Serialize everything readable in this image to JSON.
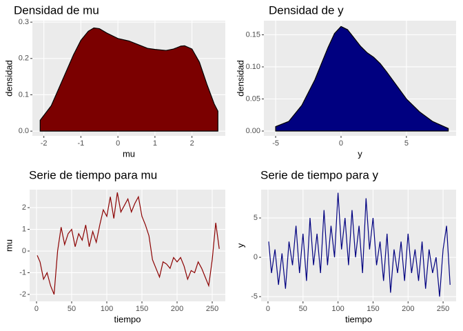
{
  "chart_data": [
    {
      "type": "area",
      "title": "Densidad de mu",
      "x_label": "mu",
      "y_label": "densidad",
      "color": "#7b0000",
      "x": [
        -2.1,
        -1.8,
        -1.5,
        -1.2,
        -1.0,
        -0.8,
        -0.65,
        -0.5,
        -0.3,
        0.0,
        0.3,
        0.5,
        0.8,
        1.0,
        1.3,
        1.5,
        1.7,
        1.8,
        2.0,
        2.2,
        2.4,
        2.6,
        2.7
      ],
      "values": [
        0.03,
        0.07,
        0.14,
        0.21,
        0.25,
        0.275,
        0.284,
        0.282,
        0.27,
        0.255,
        0.248,
        0.24,
        0.228,
        0.225,
        0.222,
        0.226,
        0.234,
        0.235,
        0.226,
        0.19,
        0.13,
        0.075,
        0.055
      ],
      "xlim": [
        -2.31,
        2.9
      ],
      "ylim": [
        -0.013,
        0.304
      ],
      "xticks": [
        -2,
        -1,
        0,
        1,
        2
      ],
      "yticks": [
        {
          "value": 0,
          "label": "0.0"
        },
        0.1,
        0.2,
        0.3
      ],
      "grid": true
    },
    {
      "type": "area",
      "title": "Densidad de y",
      "x_label": "y",
      "y_label": "densidad",
      "color": "#000080",
      "x": [
        -5,
        -4,
        -3,
        -2,
        -1.5,
        -1,
        -0.5,
        0,
        0.5,
        1,
        1.5,
        2,
        2.5,
        3,
        3.5,
        4,
        5,
        6,
        7,
        8.2
      ],
      "values": [
        0.007,
        0.015,
        0.04,
        0.08,
        0.105,
        0.13,
        0.152,
        0.163,
        0.158,
        0.145,
        0.132,
        0.122,
        0.115,
        0.105,
        0.092,
        0.078,
        0.05,
        0.03,
        0.015,
        0.004
      ],
      "xlim": [
        -5.9,
        8.8
      ],
      "ylim": [
        -0.0075,
        0.172
      ],
      "xticks": [
        -5,
        0,
        5
      ],
      "yticks": [
        {
          "value": 0,
          "label": "0.00"
        },
        0.05,
        {
          "value": 0.1,
          "label": "0.10"
        },
        0.15
      ],
      "grid": true
    },
    {
      "type": "line",
      "title": "Serie de tiempo para mu",
      "x_label": "tiempo",
      "y_label": "mu",
      "color": "#8b0000",
      "x": [
        1,
        5,
        10,
        15,
        20,
        25,
        30,
        35,
        40,
        45,
        50,
        55,
        60,
        65,
        70,
        75,
        80,
        85,
        90,
        95,
        100,
        105,
        110,
        115,
        120,
        125,
        130,
        135,
        140,
        145,
        150,
        155,
        160,
        165,
        170,
        175,
        180,
        185,
        190,
        195,
        200,
        205,
        210,
        215,
        220,
        225,
        230,
        235,
        240,
        245,
        250,
        255,
        260
      ],
      "values": [
        -0.2,
        -0.5,
        -1.3,
        -1.0,
        -1.6,
        -2.0,
        0.0,
        1.1,
        0.3,
        0.8,
        1.0,
        0.2,
        0.8,
        0.5,
        1.2,
        0.2,
        0.9,
        0.4,
        1.2,
        1.9,
        1.6,
        2.5,
        1.5,
        2.7,
        1.8,
        2.1,
        2.4,
        1.8,
        2.2,
        2.5,
        1.6,
        1.2,
        0.7,
        -0.4,
        -0.8,
        -1.2,
        -0.5,
        -0.6,
        -0.8,
        -0.3,
        -0.5,
        -0.3,
        -0.7,
        -1.3,
        -0.9,
        -1.0,
        -0.5,
        -0.8,
        -1.2,
        -1.6,
        -0.4,
        1.3,
        0.1
      ],
      "xlim": [
        -9.8,
        268.6
      ],
      "ylim": [
        -2.32,
        2.83
      ],
      "xticks": [
        0,
        50,
        100,
        150,
        200,
        250
      ],
      "yticks": [
        -2,
        -1,
        0,
        1,
        2
      ],
      "grid": true
    },
    {
      "type": "line",
      "title": "Serie de tiempo para y",
      "x_label": "tiempo",
      "y_label": "y",
      "color": "#000080",
      "x": [
        1,
        5,
        10,
        15,
        20,
        25,
        30,
        35,
        40,
        45,
        50,
        55,
        60,
        65,
        70,
        75,
        80,
        85,
        90,
        95,
        100,
        105,
        110,
        115,
        120,
        125,
        130,
        135,
        140,
        145,
        150,
        155,
        160,
        165,
        170,
        175,
        180,
        185,
        190,
        195,
        200,
        205,
        210,
        215,
        220,
        225,
        230,
        235,
        240,
        245,
        250,
        255,
        260
      ],
      "values": [
        2,
        -2,
        1,
        -3.5,
        0.5,
        -4,
        2,
        -1,
        4,
        -2,
        3,
        -3,
        5,
        -1,
        3,
        -2,
        6,
        -1,
        4,
        0,
        8.2,
        1,
        5,
        -1,
        6,
        0,
        4,
        -2,
        7.5,
        1,
        5,
        -1,
        2,
        -3,
        3,
        -4.5,
        1,
        -2,
        2,
        -3,
        3,
        -2,
        1,
        -3,
        2,
        -4,
        1,
        -2,
        0,
        -5,
        1,
        4,
        -3.5
      ],
      "xlim": [
        -9.8,
        268.6
      ],
      "ylim": [
        -5.6,
        8.6
      ],
      "xticks": [
        0,
        50,
        100,
        150,
        200,
        250
      ],
      "yticks": [
        -5,
        0,
        5
      ],
      "grid": true
    }
  ]
}
